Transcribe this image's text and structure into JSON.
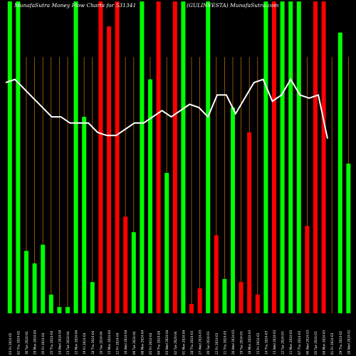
{
  "header": {
    "title": "MunafaSutra  Money Flow  Charts for 531341",
    "subtitle": "(GULINVESTA) MunafaSutra.com"
  },
  "chart_data": {
    "type": "bar",
    "colors": {
      "up": "#00ff00",
      "down": "#ff0000",
      "grid": "#b8650a",
      "line": "#ffffff",
      "background": "#000000"
    },
    "categories": [
      "01/03/2024",
      "04/03/2024",
      "05/03/2024",
      "06/03/2024",
      "07/03/2024",
      "11/03/2024",
      "12/03/2024",
      "13/03/2024",
      "14/03/2024",
      "15/03/2024",
      "18/03/2024",
      "19/03/2024",
      "20/03/2024",
      "21/03/2024",
      "22/03/2024",
      "26/03/2024",
      "27/03/2024",
      "28/03/2024",
      "01/04/2024",
      "02/04/2024",
      "03/04/2024",
      "04/04/2024",
      "05/04/2024",
      "08/04/2024",
      "09/04/2024",
      "10/04/2024",
      "12/04/2024",
      "15/04/2024",
      "16/04/2024",
      "18/04/2024",
      "19/04/2024",
      "22/04/2024",
      "23/04/2024",
      "24/04/2024",
      "25/04/2024",
      "26/04/2024",
      "29/04/2024",
      "30/04/2024",
      "02/05/2024",
      "03/05/2024",
      "06/05/2024",
      "07/05/2024"
    ],
    "tick_labels": [
      "03 Fri 2024-05",
      "02 Thu 2024-05",
      "30 Tue 2024-04",
      "29 Mon 2024-04",
      "26 Fri 2024-04",
      "25 Thu 2024-04",
      "24 Wed 2024-04",
      "23 Tue 2024-04",
      "22 Mon 2024-04",
      "19 Fri 2024-04",
      "18 Thu 2024-04",
      "16 Tue 2024-04",
      "15 Mon 2024-04",
      "12 Fri 2024-04",
      "10 Wed 2024-04",
      "09 Tue 2024-04",
      "08 Mon 2024-04",
      "05 Fri 2024-04",
      "04 Thu 2024-04",
      "03 Wed 2024-04",
      "02 Tue 2024-04",
      "01 Mon 2024-04",
      "28 Thu 2024-03",
      "27 Wed 2024-03",
      "26 Tue 2024-03",
      "22 Fri 2024-03",
      "21 Thu 2024-03",
      "20 Wed 2024-03",
      "19 Tue 2024-03",
      "18 Mon 2024-03",
      "15 Fri 2024-03",
      "14 Thu 2024-03",
      "13 Wed 2024-03",
      "12 Tue 2024-03",
      "11 Mon 2024-03",
      "07 Thu 2024-03",
      "06 Wed 2024-03",
      "05 Tue 2024-03",
      "04 Mon 2024-03",
      "01 Fri 2024-03",
      "29 Thu 2024-02",
      "28 Wed 2024-02"
    ],
    "direction": [
      "up",
      "up",
      "up",
      "up",
      "up",
      "up",
      "up",
      "up",
      "up",
      "up",
      "up",
      "down",
      "down",
      "down",
      "down",
      "up",
      "up",
      "up",
      "down",
      "up",
      "down",
      "up",
      "down",
      "down",
      "up",
      "down",
      "up",
      "up",
      "down",
      "down",
      "down",
      "up",
      "down",
      "up",
      "up",
      "up",
      "down",
      "down",
      "down",
      "down",
      "up",
      "up"
    ],
    "values": [
      100,
      100,
      20,
      16,
      22,
      6,
      2,
      2,
      100,
      63,
      10,
      100,
      92,
      100,
      31,
      26,
      100,
      75,
      100,
      45,
      100,
      100,
      3,
      8,
      100,
      25,
      11,
      66,
      10,
      58,
      6,
      100,
      100,
      100,
      100,
      100,
      28,
      100,
      100,
      0,
      90,
      48
    ],
    "line": [
      74,
      75,
      72,
      69,
      66,
      63,
      63,
      61,
      61,
      61,
      58,
      57,
      57,
      59,
      61,
      61,
      63,
      65,
      63,
      65,
      67,
      66,
      63,
      70,
      70,
      64,
      69,
      74,
      75,
      68,
      70,
      75,
      70,
      69,
      70,
      56
    ],
    "ylim": [
      0,
      100
    ],
    "grid": true,
    "xlabel": "",
    "ylabel": ""
  }
}
